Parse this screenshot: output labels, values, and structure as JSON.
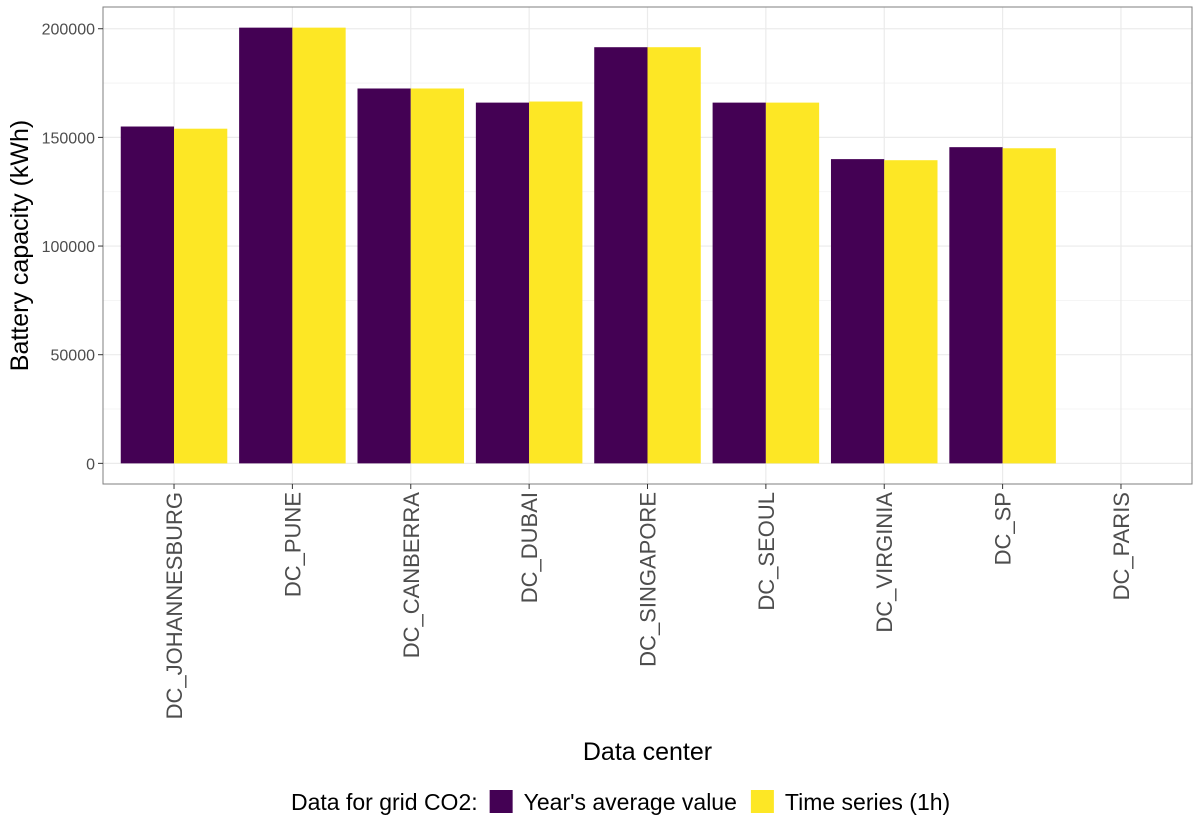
{
  "chart_data": {
    "type": "bar",
    "xlabel": "Data center",
    "ylabel": "Battery capacity (kWh)",
    "categories": [
      "DC_JOHANNESBURG",
      "DC_PUNE",
      "DC_CANBERRA",
      "DC_DUBAI",
      "DC_SINGAPORE",
      "DC_SEOUL",
      "DC_VIRGINIA",
      "DC_SP",
      "DC_PARIS"
    ],
    "series": [
      {
        "name": "Year's average value",
        "color": "#440154",
        "values": [
          155000,
          200500,
          172500,
          166000,
          191500,
          166000,
          140000,
          145500,
          0
        ]
      },
      {
        "name": "Time series (1h)",
        "color": "#FDE725",
        "values": [
          154000,
          200500,
          172500,
          166500,
          191500,
          166000,
          139500,
          145000,
          0
        ]
      }
    ],
    "ylim": [
      -9500,
      210000
    ],
    "yticks": [
      0,
      50000,
      100000,
      150000,
      200000
    ],
    "ytick_labels": [
      "0",
      "50000",
      "100000",
      "150000",
      "200000"
    ],
    "grid": true,
    "legend": {
      "title": "Data for grid CO2:",
      "position": "bottom"
    }
  }
}
